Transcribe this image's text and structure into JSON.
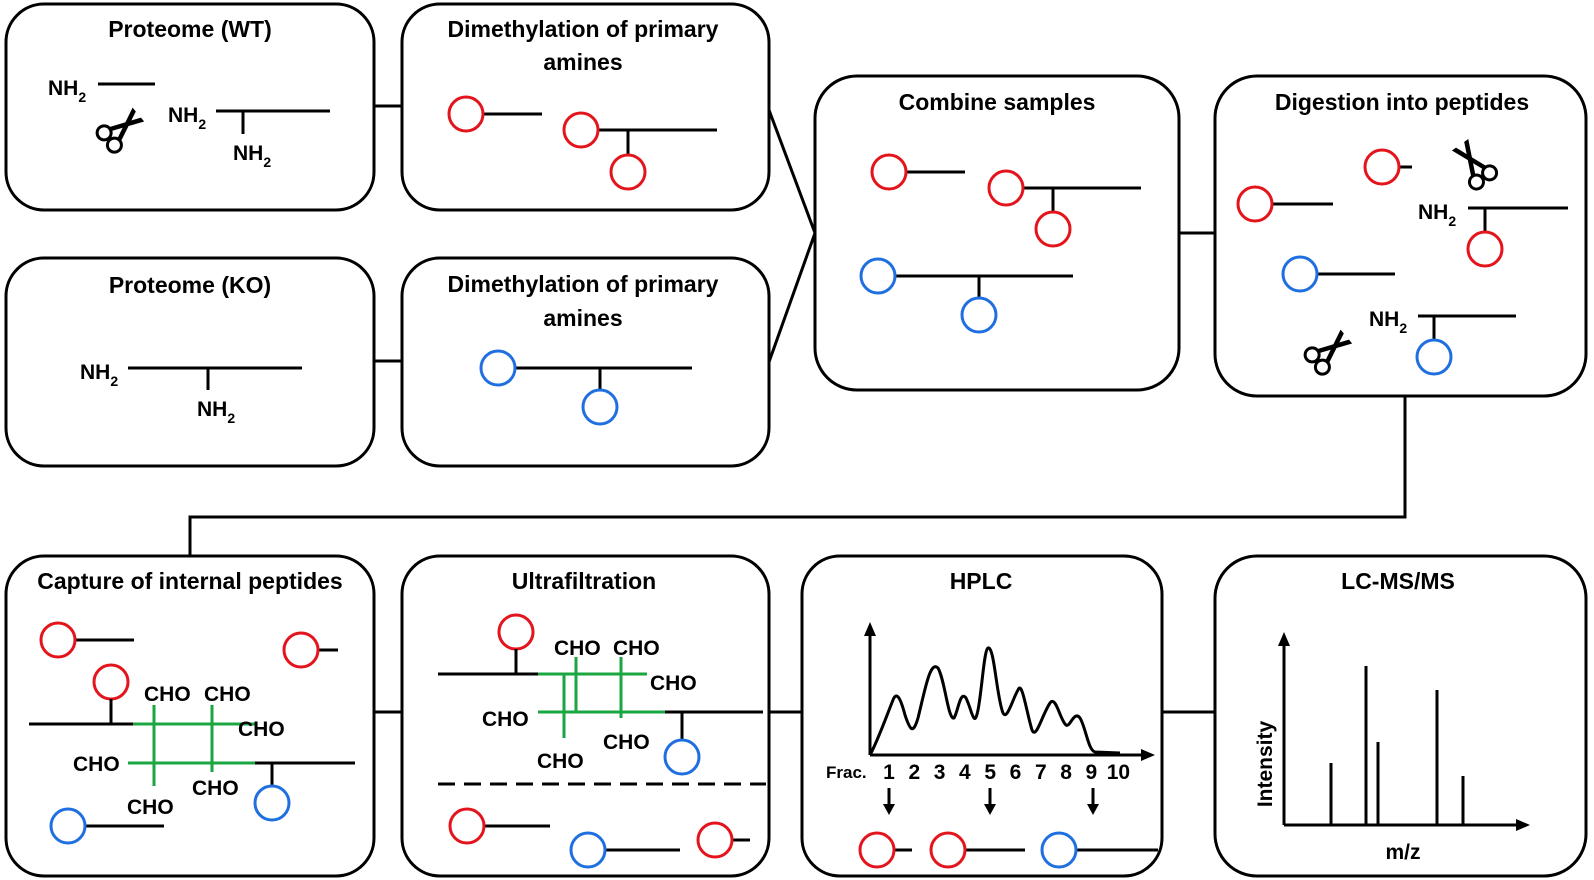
{
  "colors": {
    "red_tag": "#e3141b",
    "blue_tag": "#1f6fe0",
    "crosslink": "#1aa641"
  },
  "boxes": {
    "proteome_wt": {
      "title": "Proteome (WT)"
    },
    "dimethyl_wt": {
      "title_line1": "Dimethylation of primary",
      "title_line2": "amines"
    },
    "proteome_ko": {
      "title": "Proteome (KO)"
    },
    "dimethyl_ko": {
      "title_line1": "Dimethylation of primary",
      "title_line2": "amines"
    },
    "combine": {
      "title": "Combine samples"
    },
    "digestion": {
      "title": "Digestion into peptides"
    },
    "capture": {
      "title": "Capture of internal peptides"
    },
    "ultrafiltration": {
      "title": "Ultrafiltration"
    },
    "hplc": {
      "title": "HPLC",
      "frac_label": "Frac.",
      "fractions": [
        "1",
        "2",
        "3",
        "4",
        "5",
        "6",
        "7",
        "8",
        "9",
        "10"
      ]
    },
    "lcms": {
      "title": "LC-MS/MS",
      "ylabel": "Intensity",
      "xlabel": "m/z"
    }
  },
  "labels": {
    "amine": "NH",
    "amine_sub": "2",
    "aldehyde": "CHO"
  },
  "icons": {
    "scissors": "scissors-icon"
  }
}
